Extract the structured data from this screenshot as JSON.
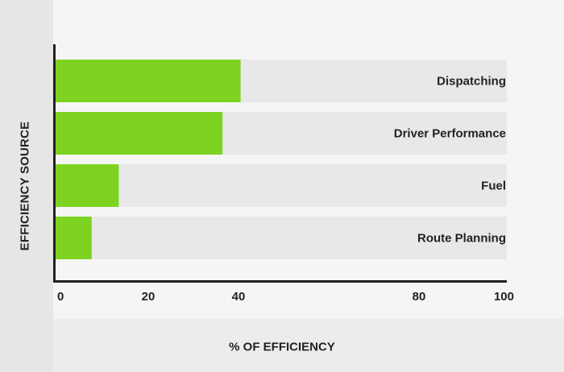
{
  "chart_data": {
    "type": "bar",
    "orientation": "horizontal",
    "xlabel": "% OF EFFICIENCY",
    "ylabel": "EFFICIENCY SOURCE",
    "categories": [
      "Dispatching",
      "Driver Performance",
      "Fuel",
      "Route Planning"
    ],
    "values": [
      41,
      37,
      14,
      8
    ],
    "xlim": [
      0,
      100
    ],
    "xticks": [
      "0",
      "20",
      "40",
      "80",
      "100"
    ],
    "xtick_values": [
      0,
      20,
      40,
      80,
      100
    ],
    "grid": false,
    "legend": "none",
    "colors": {
      "bar": "#7ed321",
      "track": "#e8e8e8",
      "axis": "#222222",
      "background": "#f5f5f5"
    }
  }
}
